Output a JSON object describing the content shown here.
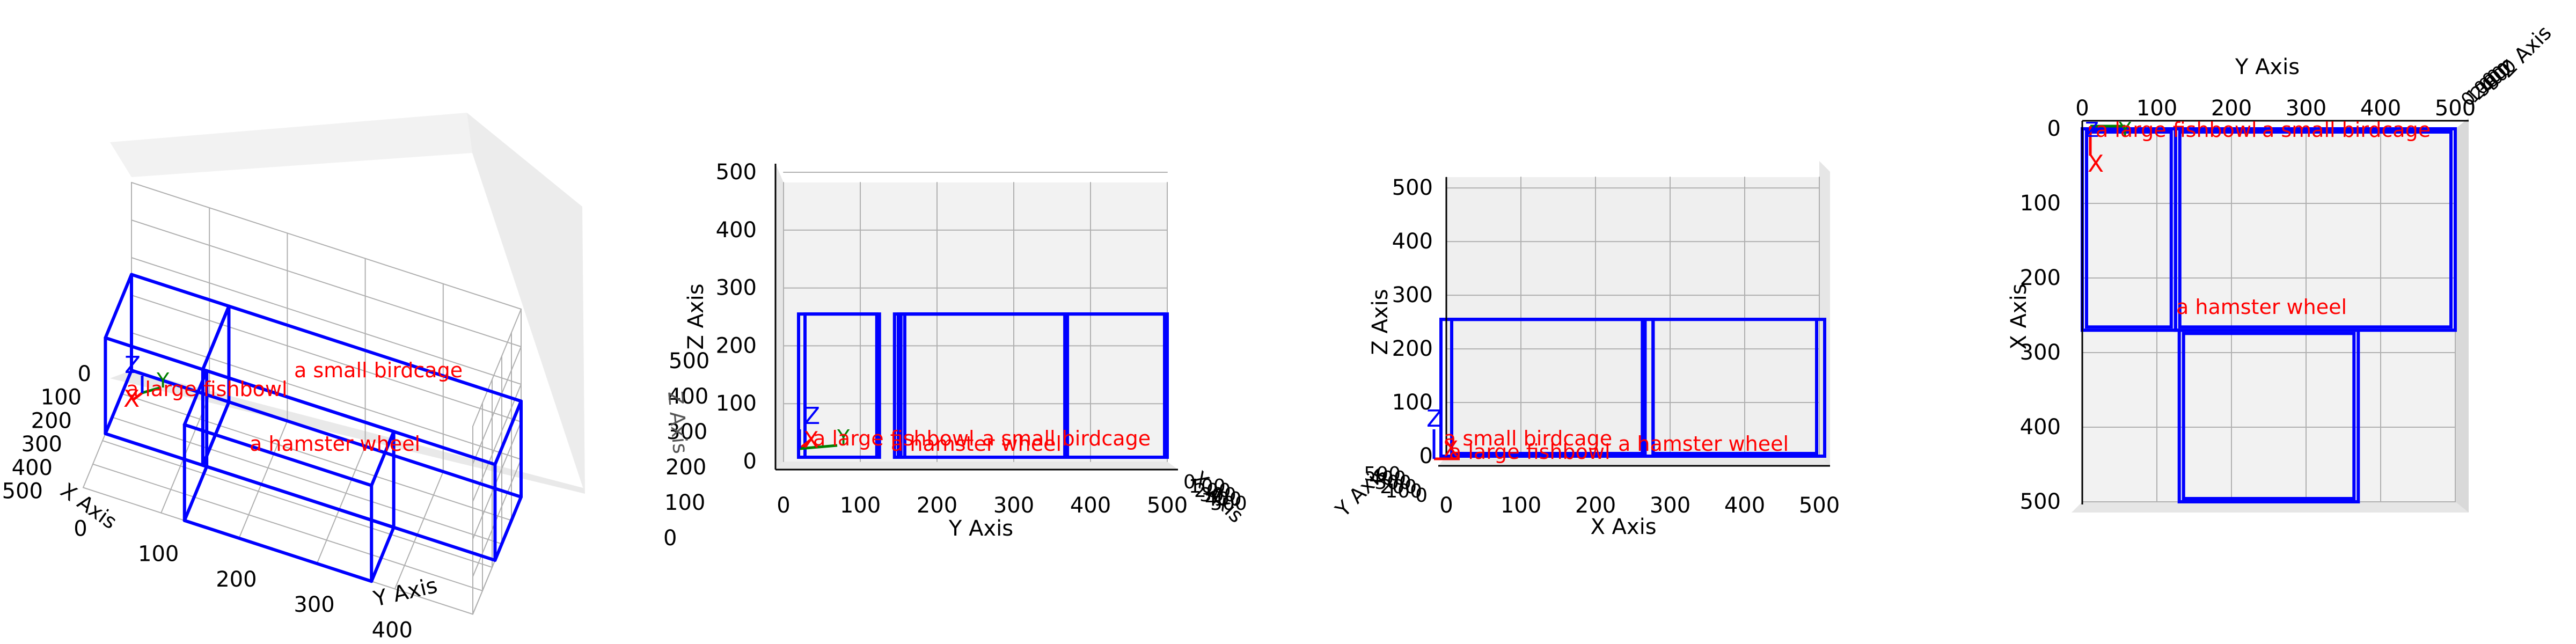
{
  "figure": {
    "axis_labels": {
      "x": "X Axis",
      "y": "Y Axis",
      "z": "Z Axis"
    },
    "origin_axis_letters": {
      "x": "X",
      "y": "Y",
      "z": "Z"
    },
    "ticks": [
      "0",
      "100",
      "200",
      "300",
      "400",
      "500"
    ],
    "colors": {
      "box": "#0000ff",
      "label": "#ff0000",
      "axis_x": "#ff0000",
      "axis_y": "#008000",
      "axis_z": "#0000ff",
      "pane": "#f2f2f2",
      "pane_dark": "#e6e6e6",
      "grid": "#b0b0b0",
      "text": "#000000"
    }
  },
  "chart_data": {
    "type": "3d-box-layout",
    "views": [
      "perspective",
      "front (Y-Z)",
      "side (X-Z)",
      "top (Y-X)"
    ],
    "xlim": [
      0,
      500
    ],
    "ylim": [
      0,
      500
    ],
    "zlim": [
      0,
      500
    ],
    "grid": true,
    "objects": [
      {
        "label": "a large fishbowl",
        "x": [
          0,
          270
        ],
        "y": [
          0,
          125
        ],
        "z": [
          0,
          255
        ]
      },
      {
        "label": "a small birdcage",
        "x": [
          0,
          270
        ],
        "y": [
          125,
          500
        ],
        "z": [
          0,
          255
        ]
      },
      {
        "label": "a hamster wheel",
        "x": [
          270,
          500
        ],
        "y": [
          130,
          370
        ],
        "z": [
          0,
          255
        ]
      }
    ]
  }
}
